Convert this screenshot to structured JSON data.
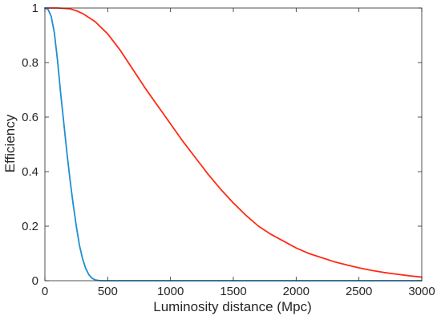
{
  "chart_data": {
    "type": "line",
    "title": "",
    "xlabel": "Luminosity distance (Mpc)",
    "ylabel": "Efficiency",
    "xlim": [
      0,
      3000
    ],
    "ylim": [
      0,
      1
    ],
    "xticks": [
      0,
      500,
      1000,
      1500,
      2000,
      2500,
      3000
    ],
    "yticks": [
      0,
      0.2,
      0.4,
      0.6,
      0.8,
      1
    ],
    "xtick_labels": [
      "0",
      "500",
      "1000",
      "1500",
      "2000",
      "2500",
      "3000"
    ],
    "ytick_labels": [
      "0",
      "0.2",
      "0.4",
      "0.6",
      "0.8",
      "1"
    ],
    "grid": false,
    "legend": false,
    "series": [
      {
        "color": "#ff2a13",
        "x": [
          0,
          100,
          200,
          250,
          300,
          400,
          500,
          600,
          700,
          800,
          900,
          1000,
          1100,
          1200,
          1300,
          1400,
          1500,
          1600,
          1700,
          1800,
          1900,
          2000,
          2100,
          2200,
          2300,
          2400,
          2500,
          2600,
          2700,
          2800,
          2900,
          3000
        ],
        "y": [
          1.0,
          1.0,
          0.997,
          0.99,
          0.98,
          0.95,
          0.905,
          0.845,
          0.775,
          0.705,
          0.64,
          0.575,
          0.51,
          0.45,
          0.39,
          0.335,
          0.285,
          0.24,
          0.2,
          0.17,
          0.145,
          0.12,
          0.1,
          0.085,
          0.07,
          0.058,
          0.047,
          0.038,
          0.03,
          0.024,
          0.018,
          0.013
        ]
      },
      {
        "color": "#1f8ed2",
        "x": [
          0,
          25,
          50,
          75,
          100,
          125,
          150,
          175,
          200,
          225,
          250,
          275,
          300,
          325,
          350,
          375,
          400,
          425,
          450,
          500,
          750,
          1000,
          1500,
          2000,
          2500,
          3000
        ],
        "y": [
          1.0,
          0.995,
          0.97,
          0.91,
          0.81,
          0.69,
          0.58,
          0.47,
          0.37,
          0.28,
          0.2,
          0.13,
          0.08,
          0.045,
          0.022,
          0.009,
          0.003,
          0.001,
          0.0,
          0.0,
          0.0,
          0.0,
          0.0,
          0.0,
          0.0,
          0.0
        ]
      }
    ]
  }
}
